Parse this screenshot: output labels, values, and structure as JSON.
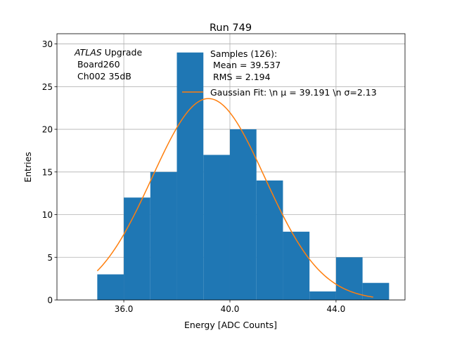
{
  "chart_data": {
    "type": "bar",
    "title": "Run 749",
    "xlabel": "Energy [ADC Counts]",
    "ylabel": "Entries",
    "xlim": [
      33.48,
      46.6
    ],
    "ylim": [
      0,
      31.2
    ],
    "grid": true,
    "xticks": [
      36,
      40,
      44
    ],
    "xtick_labels": [
      "36.0",
      "40.0",
      "44.0"
    ],
    "yticks": [
      0,
      5,
      10,
      15,
      20,
      25,
      30
    ],
    "ytick_labels": [
      "0",
      "5",
      "10",
      "15",
      "20",
      "25",
      "30"
    ],
    "histogram": {
      "bin_edges": [
        35,
        36,
        37,
        38,
        39,
        40,
        41,
        42,
        43,
        44,
        45,
        46
      ],
      "counts": [
        3,
        12,
        15,
        29,
        17,
        20,
        14,
        8,
        1,
        5,
        2
      ],
      "color": "#1f77b4"
    },
    "fit": {
      "name": "Gaussian Fit",
      "mu": 39.191,
      "sigma": 2.13,
      "amplitude": 23.6,
      "x_range": [
        35.0,
        45.4
      ],
      "color": "#ff7f0e"
    },
    "annotation": {
      "italic": "ATLAS",
      "line1_rest": " Upgrade",
      "line2": " Board260",
      "line3": " Ch002 35dB"
    },
    "legend": {
      "placement": "top-right",
      "samples_line1": "Samples (126):",
      "samples_line2": " Mean = 39.537",
      "samples_line3": " RMS = 2.194",
      "fit_label": "Gaussian Fit: \\n μ = 39.191 \\n σ=2.13"
    }
  }
}
